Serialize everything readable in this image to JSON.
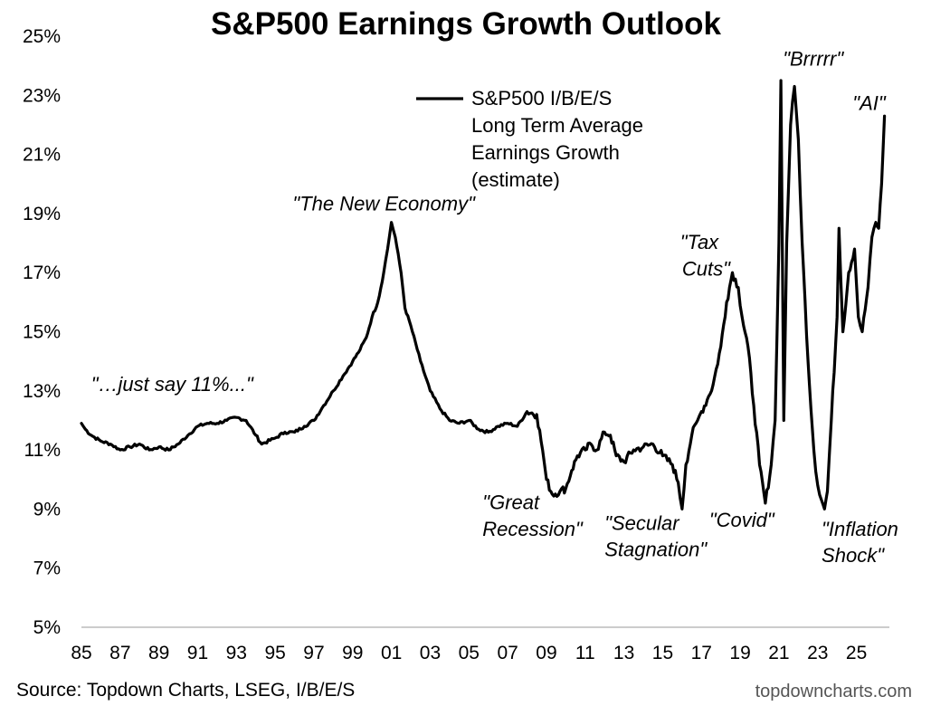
{
  "chart_data": {
    "type": "line",
    "title": "S&P500 Earnings Growth Outlook",
    "ylim": [
      5,
      25
    ],
    "y_ticks": [
      "25%",
      "23%",
      "21%",
      "19%",
      "17%",
      "15%",
      "13%",
      "11%",
      "9%",
      "7%",
      "5%"
    ],
    "x_ticks": [
      "85",
      "87",
      "89",
      "91",
      "93",
      "95",
      "97",
      "99",
      "01",
      "03",
      "05",
      "07",
      "09",
      "11",
      "13",
      "15",
      "17",
      "19",
      "21",
      "23",
      "25"
    ],
    "xlim": [
      1985,
      2026.7
    ],
    "grid": false,
    "legend_position": "top-center",
    "series": [
      {
        "name": "S&P500 I/B/E/S Long Term Average Earnings Growth (estimate)",
        "color": "#000000",
        "points": [
          [
            1985.0,
            11.9
          ],
          [
            1985.2,
            11.7
          ],
          [
            1985.5,
            11.5
          ],
          [
            1986.0,
            11.3
          ],
          [
            1986.5,
            11.2
          ],
          [
            1987.0,
            11.0
          ],
          [
            1987.5,
            11.1
          ],
          [
            1988.0,
            11.2
          ],
          [
            1988.5,
            11.0
          ],
          [
            1989.0,
            11.1
          ],
          [
            1989.5,
            11.0
          ],
          [
            1990.0,
            11.2
          ],
          [
            1990.5,
            11.5
          ],
          [
            1991.0,
            11.8
          ],
          [
            1991.5,
            11.9
          ],
          [
            1992.0,
            11.9
          ],
          [
            1992.5,
            12.0
          ],
          [
            1993.0,
            12.1
          ],
          [
            1993.5,
            12.0
          ],
          [
            1994.0,
            11.5
          ],
          [
            1994.3,
            11.2
          ],
          [
            1995.0,
            11.4
          ],
          [
            1995.5,
            11.6
          ],
          [
            1996.0,
            11.6
          ],
          [
            1996.5,
            11.8
          ],
          [
            1997.0,
            12.0
          ],
          [
            1997.5,
            12.5
          ],
          [
            1998.0,
            13.0
          ],
          [
            1998.5,
            13.5
          ],
          [
            1999.0,
            14.0
          ],
          [
            1999.3,
            14.3
          ],
          [
            1999.7,
            14.8
          ],
          [
            2000.0,
            15.5
          ],
          [
            2000.3,
            16.0
          ],
          [
            2000.6,
            17.0
          ],
          [
            2000.8,
            17.8
          ],
          [
            2001.0,
            18.7
          ],
          [
            2001.2,
            18.2
          ],
          [
            2001.5,
            17.0
          ],
          [
            2001.7,
            15.8
          ],
          [
            2002.0,
            15.2
          ],
          [
            2002.5,
            14.0
          ],
          [
            2003.0,
            13.0
          ],
          [
            2003.5,
            12.4
          ],
          [
            2004.0,
            12.0
          ],
          [
            2004.5,
            11.9
          ],
          [
            2005.0,
            12.0
          ],
          [
            2005.5,
            11.7
          ],
          [
            2006.0,
            11.6
          ],
          [
            2006.5,
            11.8
          ],
          [
            2007.0,
            11.9
          ],
          [
            2007.5,
            11.8
          ],
          [
            2008.0,
            12.3
          ],
          [
            2008.5,
            12.2
          ],
          [
            2008.8,
            11.0
          ],
          [
            2009.0,
            10.0
          ],
          [
            2009.3,
            9.5
          ],
          [
            2009.7,
            9.6
          ],
          [
            2010.0,
            9.7
          ],
          [
            2010.3,
            10.3
          ],
          [
            2010.6,
            10.8
          ],
          [
            2011.0,
            11.0
          ],
          [
            2011.3,
            11.2
          ],
          [
            2011.6,
            11.0
          ],
          [
            2012.0,
            11.6
          ],
          [
            2012.3,
            11.5
          ],
          [
            2012.6,
            10.8
          ],
          [
            2013.0,
            10.6
          ],
          [
            2013.5,
            11.0
          ],
          [
            2014.0,
            11.1
          ],
          [
            2014.5,
            11.2
          ],
          [
            2015.0,
            10.8
          ],
          [
            2015.5,
            10.5
          ],
          [
            2015.8,
            9.9
          ],
          [
            2016.0,
            9.0
          ],
          [
            2016.2,
            10.5
          ],
          [
            2016.5,
            11.5
          ],
          [
            2016.8,
            12.0
          ],
          [
            2017.0,
            12.3
          ],
          [
            2017.3,
            12.7
          ],
          [
            2017.6,
            13.2
          ],
          [
            2018.0,
            14.5
          ],
          [
            2018.3,
            16.0
          ],
          [
            2018.6,
            17.0
          ],
          [
            2018.9,
            16.5
          ],
          [
            2019.1,
            15.5
          ],
          [
            2019.4,
            14.5
          ],
          [
            2019.7,
            12.5
          ],
          [
            2020.0,
            10.5
          ],
          [
            2020.3,
            9.2
          ],
          [
            2020.6,
            10.5
          ],
          [
            2020.8,
            12.0
          ],
          [
            2021.0,
            18.0
          ],
          [
            2021.1,
            23.5
          ],
          [
            2021.25,
            12.0
          ],
          [
            2021.4,
            18.0
          ],
          [
            2021.6,
            22.0
          ],
          [
            2021.8,
            23.3
          ],
          [
            2022.0,
            21.5
          ],
          [
            2022.2,
            18.0
          ],
          [
            2022.5,
            14.0
          ],
          [
            2022.8,
            11.0
          ],
          [
            2023.0,
            9.8
          ],
          [
            2023.2,
            9.3
          ],
          [
            2023.35,
            9.0
          ],
          [
            2023.5,
            9.6
          ],
          [
            2023.7,
            12.0
          ],
          [
            2024.0,
            15.5
          ],
          [
            2024.1,
            18.5
          ],
          [
            2024.3,
            15.0
          ],
          [
            2024.6,
            17.0
          ],
          [
            2024.9,
            17.8
          ],
          [
            2025.1,
            15.5
          ],
          [
            2025.3,
            15.0
          ],
          [
            2025.6,
            16.5
          ],
          [
            2025.8,
            18.2
          ],
          [
            2026.0,
            18.7
          ],
          [
            2026.15,
            18.5
          ],
          [
            2026.3,
            20.0
          ],
          [
            2026.45,
            22.3
          ]
        ]
      }
    ],
    "annotations": [
      {
        "text": "\"…just say 11%...\"",
        "x": 1985.5,
        "y": 13.0
      },
      {
        "text": "\"The New Economy\"",
        "x": 1995.9,
        "y": 19.1
      },
      {
        "text": "\"Great",
        "x": 2005.7,
        "y": 9.0
      },
      {
        "text": "Recession\"",
        "x": 2005.7,
        "y": 8.1
      },
      {
        "text": "\"Secular",
        "x": 2012.0,
        "y": 8.3
      },
      {
        "text": "Stagnation\"",
        "x": 2012.0,
        "y": 7.4
      },
      {
        "text": "\"Tax",
        "x": 2015.9,
        "y": 17.8
      },
      {
        "text": "Cuts\"",
        "x": 2016.0,
        "y": 16.9
      },
      {
        "text": "\"Covid\"",
        "x": 2017.4,
        "y": 8.4
      },
      {
        "text": "\"Brrrrr\"",
        "x": 2021.2,
        "y": 24.0
      },
      {
        "text": "\"AI\"",
        "x": 2024.8,
        "y": 22.5
      },
      {
        "text": "\"Inflation",
        "x": 2023.2,
        "y": 8.1
      },
      {
        "text": "Shock\"",
        "x": 2023.2,
        "y": 7.2
      }
    ]
  },
  "legend": {
    "lines": [
      "S&P500 I/B/E/S",
      "Long Term Average",
      "Earnings Growth",
      "(estimate)"
    ]
  },
  "footer": {
    "source": "Source: Topdown Charts, LSEG, I/B/E/S",
    "brand": "topdowncharts.com"
  }
}
